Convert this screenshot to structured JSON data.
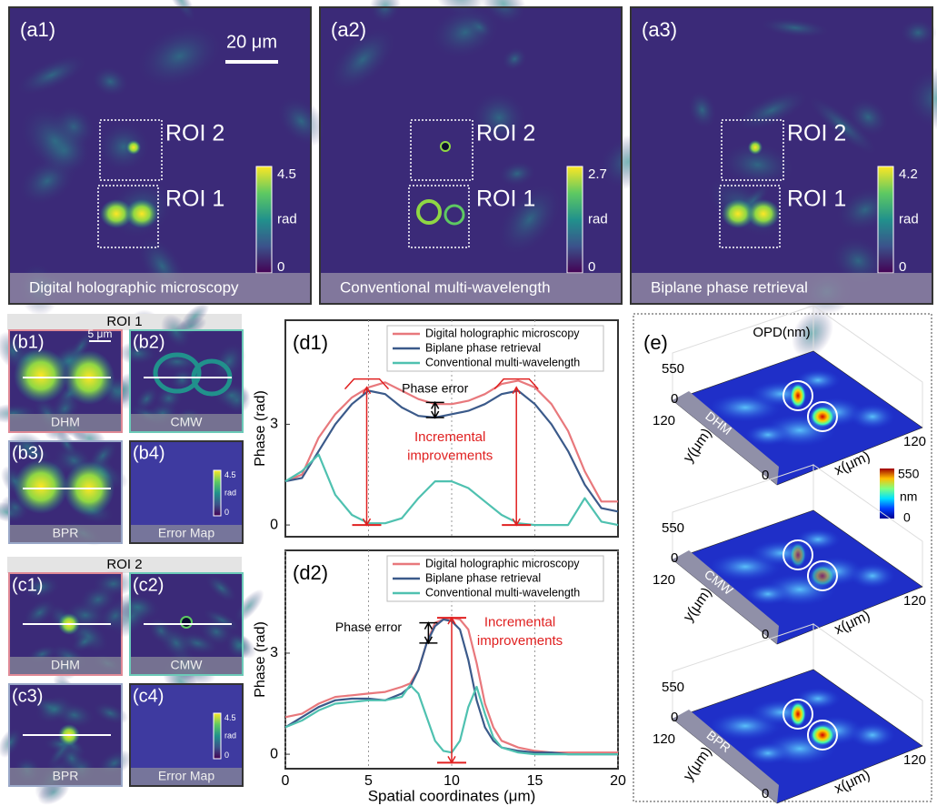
{
  "panels_a": [
    {
      "label": "(a1)",
      "caption": "Digital holographic microscopy",
      "colorbar_max": 4.5,
      "colorbar_min": 0,
      "colorbar_unit": "rad",
      "rois": [
        "ROI 2",
        "ROI 1"
      ],
      "scale_bar": "20 μm"
    },
    {
      "label": "(a2)",
      "caption": "Conventional multi-wavelength",
      "colorbar_max": 2.7,
      "colorbar_min": 0,
      "colorbar_unit": "rad",
      "rois": [
        "ROI 2",
        "ROI 1"
      ]
    },
    {
      "label": "(a3)",
      "caption": "Biplane phase retrieval",
      "colorbar_max": 4.2,
      "colorbar_min": 0,
      "colorbar_unit": "rad",
      "rois": [
        "ROI 2",
        "ROI 1"
      ]
    }
  ],
  "roi_groups": [
    {
      "title": "ROI 1",
      "scale_bar": "5 μm",
      "panels": [
        {
          "label": "(b1)",
          "caption": "DHM"
        },
        {
          "label": "(b2)",
          "caption": "CMW"
        },
        {
          "label": "(b3)",
          "caption": "BPR"
        },
        {
          "label": "(b4)",
          "caption": "Error Map",
          "colorbar_max": 4.5,
          "colorbar_unit": "rad",
          "colorbar_min": 0
        }
      ]
    },
    {
      "title": "ROI 2",
      "panels": [
        {
          "label": "(c1)",
          "caption": "DHM"
        },
        {
          "label": "(c2)",
          "caption": "CMW"
        },
        {
          "label": "(c3)",
          "caption": "BPR"
        },
        {
          "label": "(c4)",
          "caption": "Error Map",
          "colorbar_max": 4.5,
          "colorbar_unit": "rad",
          "colorbar_min": 0
        }
      ]
    }
  ],
  "chart_data": [
    {
      "type": "line",
      "panel_label": "(d1)",
      "ylabel": "Phase (rad)",
      "x": [
        0,
        1,
        2,
        3,
        4,
        5,
        6,
        7,
        8,
        9,
        10,
        11,
        12,
        13,
        14,
        15,
        16,
        17,
        18,
        19,
        20
      ],
      "series": [
        {
          "name": "Digital holographic microscopy",
          "color": "#e8787c",
          "values": [
            1.3,
            1.5,
            2.6,
            3.3,
            3.8,
            4.1,
            4.25,
            4.0,
            3.75,
            3.6,
            3.6,
            3.7,
            3.9,
            4.2,
            4.3,
            4.1,
            3.6,
            2.8,
            1.6,
            0.7,
            0.7
          ]
        },
        {
          "name": "Biplane phase retrieval",
          "color": "#3b5a8a",
          "values": [
            1.3,
            1.4,
            2.2,
            3.0,
            3.6,
            4.0,
            3.9,
            3.5,
            3.25,
            3.2,
            3.3,
            3.4,
            3.6,
            3.9,
            4.0,
            3.6,
            3.0,
            2.2,
            1.2,
            0.5,
            0.4
          ]
        },
        {
          "name": "Conventional multi-wavelength",
          "color": "#4fc1b0",
          "values": [
            1.3,
            1.6,
            2.1,
            0.9,
            0.3,
            0.05,
            0.05,
            0.2,
            0.8,
            1.3,
            1.3,
            1.1,
            0.7,
            0.3,
            0.05,
            0,
            0,
            0,
            0.8,
            0.1,
            0
          ]
        }
      ],
      "annotations": [
        "Phase error",
        "Incremental",
        "improvements"
      ],
      "xlim": [
        0,
        20
      ],
      "ylim": [
        -0.35,
        6.1
      ],
      "xticks": [
        5,
        10,
        15
      ],
      "show_xtick_labels": false,
      "yticks": [
        0,
        3
      ],
      "grid": "x",
      "legend": "top-right"
    },
    {
      "type": "line",
      "panel_label": "(d2)",
      "ylabel": "Phase (rad)",
      "xlabel": "Spatial coordinates (μm)",
      "x": [
        0,
        1,
        2,
        3,
        4,
        5,
        6,
        7,
        7.5,
        8,
        8.5,
        9,
        9.5,
        10,
        10.5,
        11,
        11.5,
        12,
        12.5,
        13,
        14,
        15,
        16,
        17,
        18,
        19,
        20
      ],
      "series": [
        {
          "name": "Digital holographic microscopy",
          "color": "#e8787c",
          "values": [
            1.1,
            1.2,
            1.5,
            1.7,
            1.75,
            1.8,
            1.85,
            2.0,
            2.1,
            2.5,
            3.3,
            3.9,
            4.0,
            4.05,
            4.0,
            3.7,
            2.7,
            1.5,
            0.8,
            0.4,
            0.2,
            0.1,
            0.05,
            0.05,
            0.05,
            0.05,
            0.05
          ]
        },
        {
          "name": "Biplane phase retrieval",
          "color": "#3b5a8a",
          "values": [
            0.8,
            1.1,
            1.4,
            1.6,
            1.65,
            1.65,
            1.6,
            1.8,
            2.0,
            2.5,
            3.3,
            3.8,
            4.0,
            3.95,
            3.7,
            2.8,
            1.6,
            0.8,
            0.4,
            0.2,
            0.1,
            0.05,
            0.05,
            0,
            0,
            0,
            0
          ]
        },
        {
          "name": "Conventional multi-wavelength",
          "color": "#4fc1b0",
          "values": [
            0.8,
            1.0,
            1.3,
            1.5,
            1.55,
            1.6,
            1.6,
            1.7,
            2.05,
            1.8,
            1.1,
            0.4,
            0.1,
            0.05,
            0.4,
            1.4,
            2.0,
            1.2,
            0.5,
            0.2,
            0.05,
            0,
            0,
            0,
            0,
            0,
            0
          ]
        }
      ],
      "annotations": [
        "Phase error",
        "Incremental",
        "improvements"
      ],
      "xlim": [
        0,
        20
      ],
      "ylim": [
        -0.43,
        6.05
      ],
      "xticks": [
        0,
        5,
        10,
        15,
        20
      ],
      "show_xtick_labels": true,
      "yticks": [
        0,
        3
      ],
      "grid": "x",
      "legend": "top-right"
    }
  ],
  "panel_e": {
    "label": "(e)",
    "title": "OPD(nm)",
    "colorbar_max": 550,
    "colorbar_unit": "nm",
    "colorbar_min": 0,
    "plots": [
      {
        "method": "DHM",
        "z_ticks": [
          550,
          0
        ],
        "y_tick": 120,
        "x_tick": 120,
        "origin": 0,
        "ylabel": "y(μm)",
        "xlabel": "x(μm)"
      },
      {
        "method": "CMW",
        "z_ticks": [
          550,
          0
        ],
        "y_tick": 120,
        "x_tick": 120,
        "origin": 0,
        "ylabel": "y(μm)",
        "xlabel": "x(μm)"
      },
      {
        "method": "BPR",
        "z_ticks": [
          550,
          0
        ],
        "y_tick": 120,
        "x_tick": 120,
        "origin": 0,
        "ylabel": "y(μm)",
        "xlabel": "x(μm)"
      }
    ]
  }
}
